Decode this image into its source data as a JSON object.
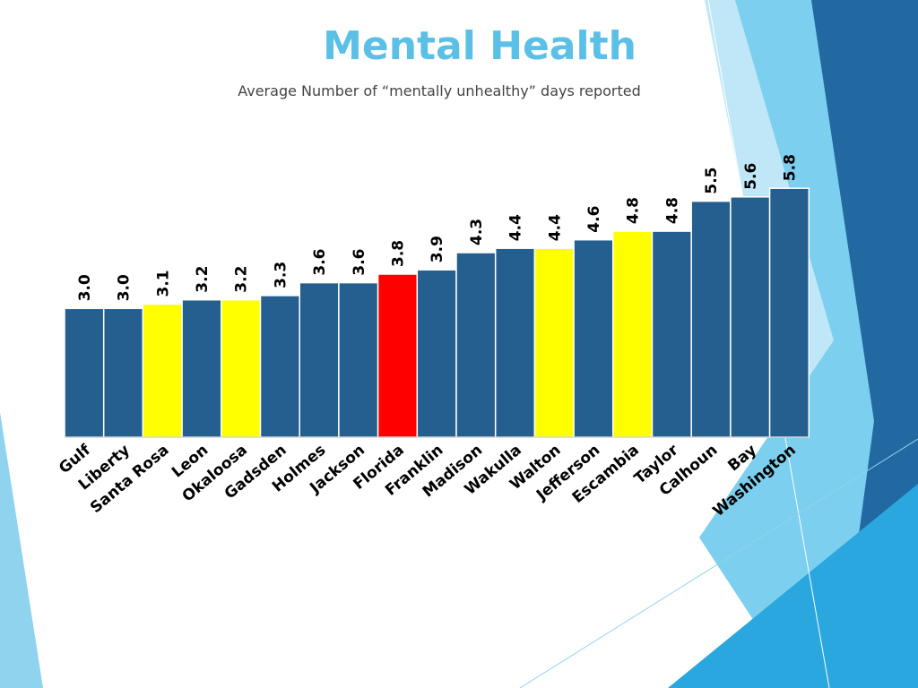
{
  "slide": {
    "title": "Mental Health",
    "subtitle": "Average Number of “mentally unhealthy” days reported"
  },
  "colors": {
    "default_bar": "#245f90",
    "highlight_bar": "#ffff00",
    "state_bar": "#ff0000",
    "title": "#5bc0e6",
    "deco_light": "#8fd3ef",
    "deco_mid": "#5bc0e6",
    "deco_dark": "#1f6ea4"
  },
  "chart_data": {
    "type": "bar",
    "title": "",
    "xlabel": "",
    "ylabel": "",
    "ylim": [
      0,
      6
    ],
    "grid": false,
    "legend": "none",
    "categories": [
      "Gulf",
      "Liberty",
      "Santa Rosa",
      "Leon",
      "Okaloosa",
      "Gadsden",
      "Holmes",
      "Jackson",
      "Florida",
      "Franklin",
      "Madison",
      "Wakulla",
      "Walton",
      "Jefferson",
      "Escambia",
      "Taylor",
      "Calhoun",
      "Bay",
      "Washington"
    ],
    "values": [
      3.0,
      3.0,
      3.1,
      3.2,
      3.2,
      3.3,
      3.6,
      3.6,
      3.8,
      3.9,
      4.3,
      4.4,
      4.4,
      4.6,
      4.8,
      4.8,
      5.5,
      5.6,
      5.8
    ],
    "value_labels": [
      "3.0",
      "3.0",
      "3.1",
      "3.2",
      "3.2",
      "3.3",
      "3.6",
      "3.6",
      "3.8",
      "3.9",
      "4.3",
      "4.4",
      "4.4",
      "4.6",
      "4.8",
      "4.8",
      "5.5",
      "5.6",
      "5.8"
    ],
    "bar_colors": [
      "default_bar",
      "default_bar",
      "highlight_bar",
      "default_bar",
      "highlight_bar",
      "default_bar",
      "default_bar",
      "default_bar",
      "state_bar",
      "default_bar",
      "default_bar",
      "default_bar",
      "highlight_bar",
      "default_bar",
      "highlight_bar",
      "default_bar",
      "default_bar",
      "default_bar",
      "default_bar"
    ]
  }
}
